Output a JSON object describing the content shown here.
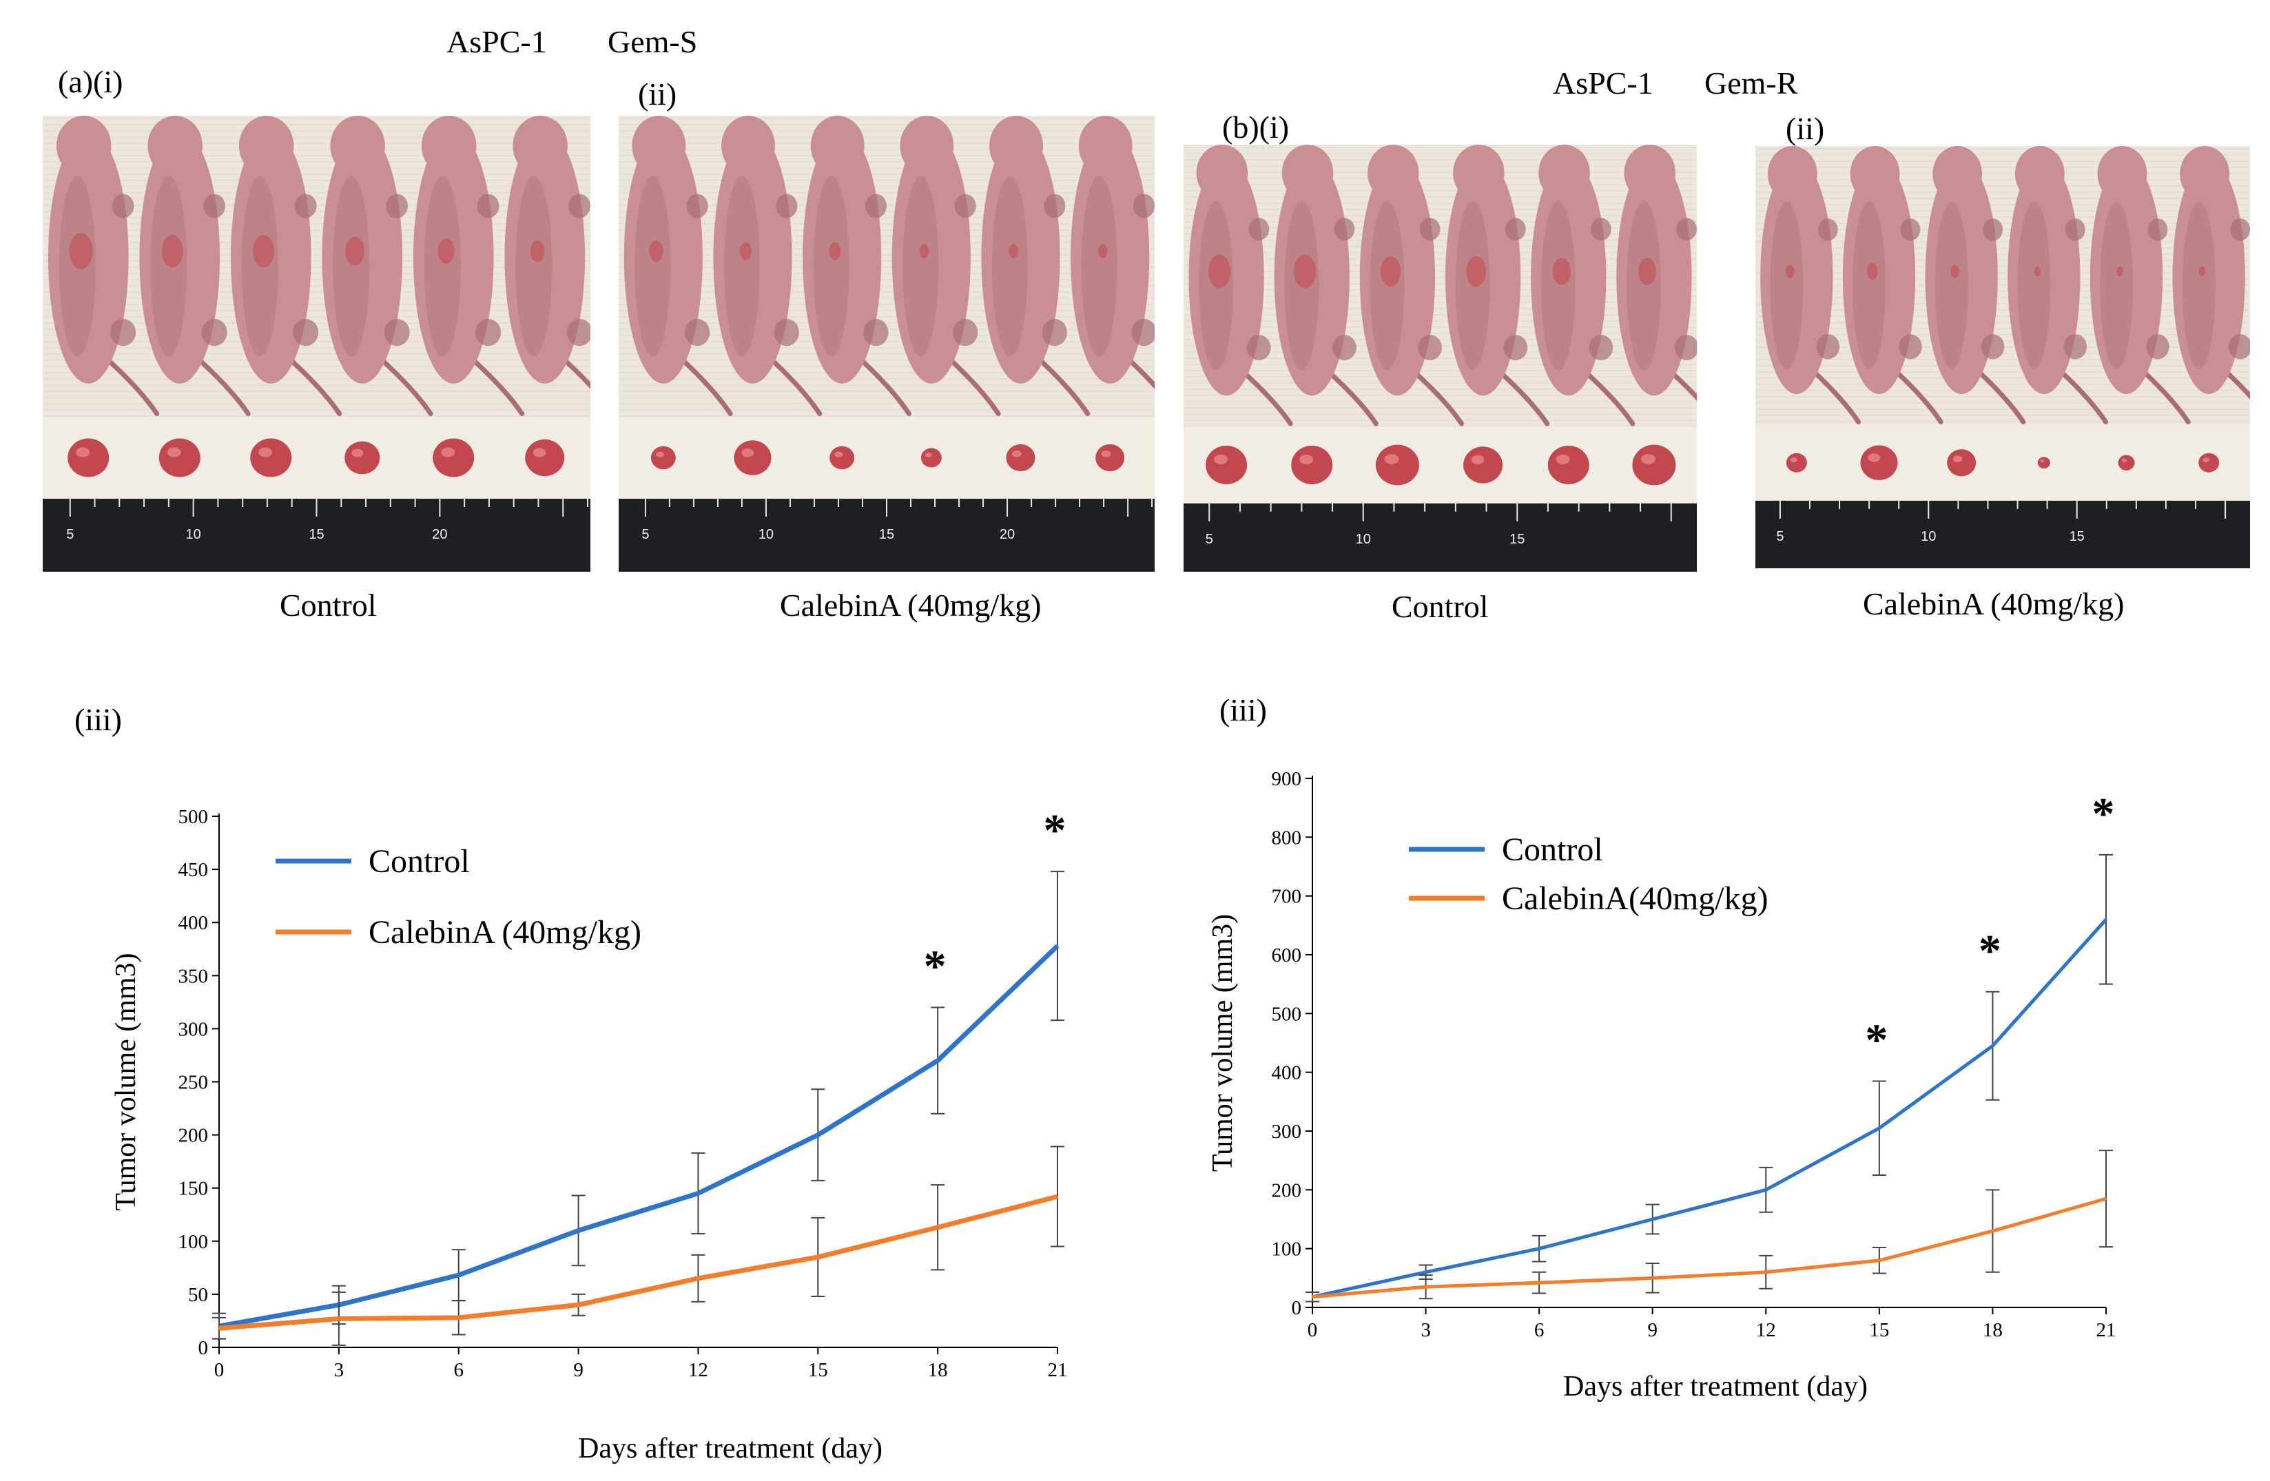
{
  "figure": {
    "panel_a": {
      "cell_line": "AsPC-1",
      "subtype": "Gem-S",
      "label_i": "(a)(i)",
      "label_ii": "(ii)",
      "label_iii": "(iii)",
      "caption_i": "Control",
      "caption_ii": "CalebinA (40mg/kg)",
      "ruler_i": [
        "5",
        "10",
        "15",
        "20"
      ],
      "ruler_ii": [
        "5",
        "10",
        "15",
        "20"
      ]
    },
    "panel_b": {
      "cell_line": "AsPC-1",
      "subtype": "Gem-R",
      "label_i": "(b)(i)",
      "label_ii": "(ii)",
      "label_iii": "(iii)",
      "caption_i": "Control",
      "caption_ii": "CalebinA (40mg/kg)",
      "ruler_i": [
        "5",
        "10",
        "15"
      ],
      "ruler_ii": [
        "5",
        "10",
        "15"
      ]
    },
    "photo_colors": {
      "skin": "#c98f92",
      "skin_dark": "#a96d75",
      "tumor": "#c2474e",
      "cloth": "#ece6dd",
      "ruler": "#1d1f22"
    }
  },
  "chart_data": [
    {
      "type": "line",
      "title": "",
      "xlabel": "Days after treatment (day)",
      "ylabel": "Tumor volume (mm3)",
      "x": [
        0,
        3,
        6,
        9,
        12,
        15,
        18,
        21
      ],
      "xticks": [
        "0",
        "3",
        "6",
        "9",
        "12",
        "15",
        "18",
        "21"
      ],
      "xlim": [
        0,
        21
      ],
      "ylim": [
        0,
        500
      ],
      "yticks": [
        "0",
        "50",
        "100",
        "150",
        "200",
        "250",
        "300",
        "350",
        "400",
        "450",
        "500"
      ],
      "legend": "top-left",
      "series": [
        {
          "name": "Control",
          "color": "#2e75c9",
          "values": [
            20,
            40,
            68,
            110,
            145,
            200,
            270,
            378
          ],
          "errors": [
            12,
            18,
            24,
            33,
            38,
            43,
            50,
            70
          ]
        },
        {
          "name": "CalebinA (40mg/kg)",
          "color": "#f47d2b",
          "values": [
            18,
            27,
            28,
            40,
            65,
            85,
            113,
            142
          ],
          "errors": [
            10,
            25,
            16,
            10,
            22,
            37,
            40,
            47
          ]
        }
      ],
      "significance": [
        {
          "x": 18,
          "label": "*"
        },
        {
          "x": 21,
          "label": "*"
        }
      ]
    },
    {
      "type": "line",
      "title": "",
      "xlabel": "Days after treatment (day)",
      "ylabel": "Tumor volume (mm3)",
      "x": [
        0,
        3,
        6,
        9,
        12,
        15,
        18,
        21
      ],
      "xticks": [
        "0",
        "3",
        "6",
        "9",
        "12",
        "15",
        "18",
        "21"
      ],
      "xlim": [
        0,
        21
      ],
      "ylim": [
        0,
        900
      ],
      "yticks": [
        "0",
        "100",
        "200",
        "300",
        "400",
        "500",
        "600",
        "700",
        "800",
        "900"
      ],
      "legend": "top-left",
      "series": [
        {
          "name": "Control",
          "color": "#2e75c9",
          "values": [
            18,
            60,
            100,
            150,
            200,
            305,
            445,
            660
          ],
          "errors": [
            8,
            12,
            22,
            25,
            38,
            80,
            92,
            110
          ]
        },
        {
          "name": "CalebinA(40mg/kg)",
          "color": "#f47d2b",
          "values": [
            18,
            35,
            42,
            50,
            60,
            80,
            130,
            185
          ],
          "errors": [
            8,
            20,
            18,
            25,
            28,
            22,
            70,
            82
          ]
        }
      ],
      "significance": [
        {
          "x": 15,
          "label": "*"
        },
        {
          "x": 18,
          "label": "*"
        },
        {
          "x": 21,
          "label": "*"
        }
      ]
    }
  ]
}
